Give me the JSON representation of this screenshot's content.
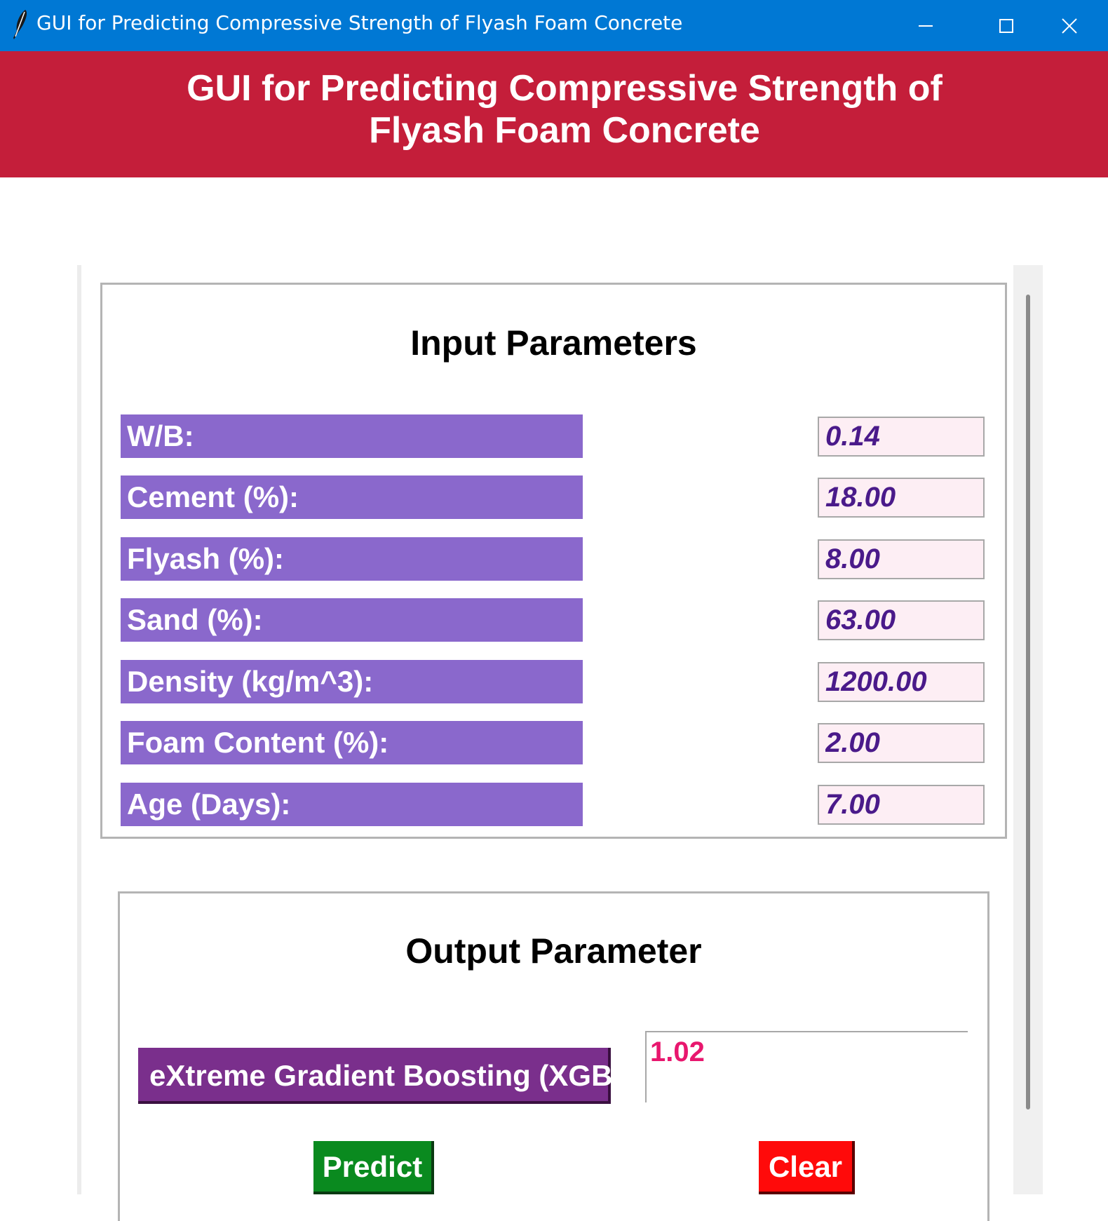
{
  "window": {
    "title": "GUI for Predicting Compressive Strength of Flyash Foam Concrete",
    "icon": "feather-icon",
    "titlebar_color": "#0078d4"
  },
  "banner": {
    "line1": "GUI for Predicting Compressive Strength of",
    "line2": "Flyash Foam Concrete",
    "color": "#c41e3a"
  },
  "input_section": {
    "heading": "Input Parameters",
    "params": [
      {
        "label": "W/B:",
        "value": "0.14"
      },
      {
        "label": "Cement (%):",
        "value": "18.00"
      },
      {
        "label": "Flyash (%):",
        "value": "8.00"
      },
      {
        "label": "Sand (%):",
        "value": "63.00"
      },
      {
        "label": "Density (kg/m^3):",
        "value": "1200.00"
      },
      {
        "label": "Foam Content (%):",
        "value": "2.00"
      },
      {
        "label": "Age (Days):",
        "value": "7.00"
      }
    ]
  },
  "output_section": {
    "heading": "Output Parameter",
    "model_label": "eXtreme Gradient Boosting (XGB)",
    "result": "1.02"
  },
  "buttons": {
    "predict": "Predict",
    "clear": "Clear"
  },
  "colors": {
    "label_bg": "#8a68cc",
    "input_bg": "#fdeef4",
    "input_text": "#4a1a8a",
    "model_bg": "#7a2f8c",
    "result_text": "#e8176e",
    "predict_bg": "#0a8a1f",
    "clear_bg": "#ff0a0a"
  }
}
